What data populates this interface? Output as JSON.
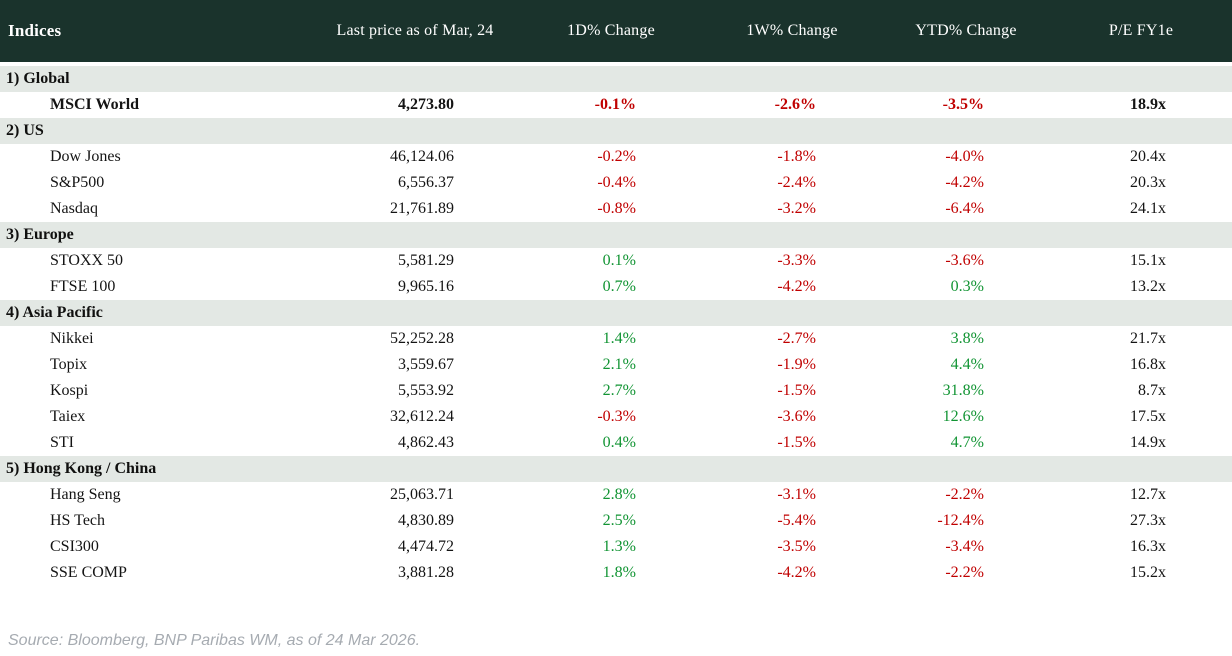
{
  "chart_data": {
    "type": "table",
    "columns": [
      "Indices",
      "Last price as of Mar, 24",
      "1D% Change",
      "1W% Change",
      "YTD% Change",
      "P/E FY1e"
    ],
    "sections": [
      {
        "label": "1) Global",
        "rows": [
          {
            "name": "MSCI World",
            "price": "4,273.80",
            "d1": "-0.1%",
            "w1": "-2.6%",
            "ytd": "-3.5%",
            "pe": "18.9x",
            "bold": true
          }
        ]
      },
      {
        "label": "2) US",
        "rows": [
          {
            "name": "Dow Jones",
            "price": "46,124.06",
            "d1": "-0.2%",
            "w1": "-1.8%",
            "ytd": "-4.0%",
            "pe": "20.4x"
          },
          {
            "name": "S&P500",
            "price": "6,556.37",
            "d1": "-0.4%",
            "w1": "-2.4%",
            "ytd": "-4.2%",
            "pe": "20.3x"
          },
          {
            "name": "Nasdaq",
            "price": "21,761.89",
            "d1": "-0.8%",
            "w1": "-3.2%",
            "ytd": "-6.4%",
            "pe": "24.1x"
          }
        ]
      },
      {
        "label": "3) Europe",
        "rows": [
          {
            "name": "STOXX 50",
            "price": "5,581.29",
            "d1": "0.1%",
            "w1": "-3.3%",
            "ytd": "-3.6%",
            "pe": "15.1x"
          },
          {
            "name": "FTSE 100",
            "price": "9,965.16",
            "d1": "0.7%",
            "w1": "-4.2%",
            "ytd": "0.3%",
            "pe": "13.2x"
          }
        ]
      },
      {
        "label": "4) Asia Pacific",
        "rows": [
          {
            "name": "Nikkei",
            "price": "52,252.28",
            "d1": "1.4%",
            "w1": "-2.7%",
            "ytd": "3.8%",
            "pe": "21.7x"
          },
          {
            "name": "Topix",
            "price": "3,559.67",
            "d1": "2.1%",
            "w1": "-1.9%",
            "ytd": "4.4%",
            "pe": "16.8x"
          },
          {
            "name": "Kospi",
            "price": "5,553.92",
            "d1": "2.7%",
            "w1": "-1.5%",
            "ytd": "31.8%",
            "pe": "8.7x"
          },
          {
            "name": "Taiex",
            "price": "32,612.24",
            "d1": "-0.3%",
            "w1": "-3.6%",
            "ytd": "12.6%",
            "pe": "17.5x"
          },
          {
            "name": "STI",
            "price": "4,862.43",
            "d1": "0.4%",
            "w1": "-1.5%",
            "ytd": "4.7%",
            "pe": "14.9x"
          }
        ]
      },
      {
        "label": "5) Hong Kong / China",
        "rows": [
          {
            "name": "Hang Seng",
            "price": "25,063.71",
            "d1": "2.8%",
            "w1": "-3.1%",
            "ytd": "-2.2%",
            "pe": "12.7x"
          },
          {
            "name": "HS Tech",
            "price": "4,830.89",
            "d1": "2.5%",
            "w1": "-5.4%",
            "ytd": "-12.4%",
            "pe": "27.3x"
          },
          {
            "name": "CSI300",
            "price": "4,474.72",
            "d1": "1.3%",
            "w1": "-3.5%",
            "ytd": "-3.4%",
            "pe": "16.3x"
          },
          {
            "name": "SSE COMP",
            "price": "3,881.28",
            "d1": "1.8%",
            "w1": "-4.2%",
            "ytd": "-2.2%",
            "pe": "15.2x"
          }
        ]
      }
    ]
  },
  "footer": {
    "source": "Source: Bloomberg, BNP Paribas WM, as of 24 Mar 2026."
  },
  "colors": {
    "header_bg": "#1a332c",
    "band_bg": "#e3e8e4",
    "positive": "#119433",
    "negative": "#c00000",
    "footer_text": "#a6abb1"
  }
}
